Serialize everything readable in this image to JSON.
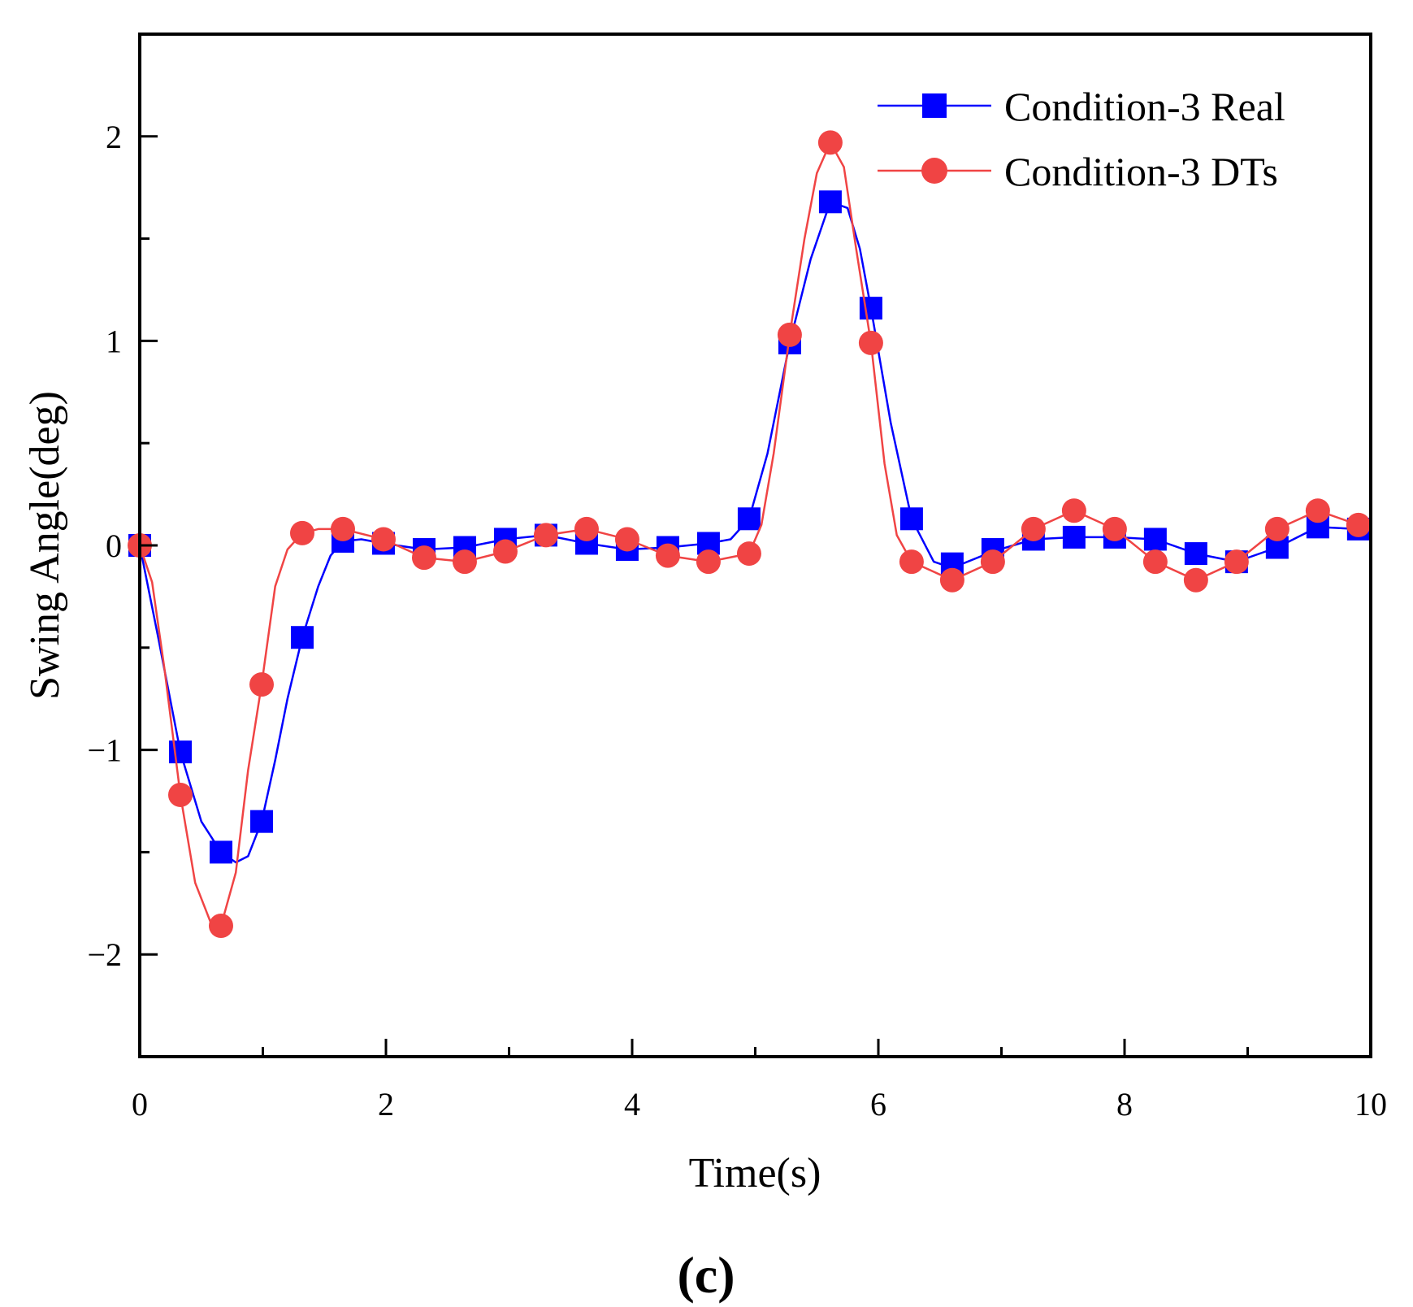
{
  "chart_data": {
    "type": "line",
    "title": "",
    "xlabel": "Time(s)",
    "ylabel": "Swing Angle(deg)",
    "panel_label": "(c)",
    "xlim": [
      0,
      10
    ],
    "ylim": [
      -2.5,
      2.5
    ],
    "x_ticks": [
      0,
      2,
      4,
      6,
      8,
      10
    ],
    "x_tick_labels": [
      "0",
      "2",
      "4",
      "6",
      "8",
      "10"
    ],
    "x_minor_ticks": [
      1,
      3,
      5,
      7,
      9
    ],
    "y_ticks": [
      -2,
      -1,
      0,
      1,
      2
    ],
    "y_tick_labels": [
      "−2",
      "−1",
      "0",
      "1",
      "2"
    ],
    "legend_position": "top-right",
    "series": [
      {
        "name": "Condition-3 Real",
        "color": "#0000ff",
        "marker": "square",
        "x": [
          0.0,
          0.33,
          0.66,
          0.99,
          1.32,
          1.65,
          1.98,
          2.31,
          2.64,
          2.97,
          3.3,
          3.63,
          3.96,
          4.29,
          4.62,
          4.95,
          5.28,
          5.61,
          5.94,
          6.27,
          6.6,
          6.93,
          7.26,
          7.59,
          7.92,
          8.25,
          8.58,
          8.91,
          9.24,
          9.57,
          9.9
        ],
        "values": [
          0.0,
          -1.01,
          -1.5,
          -1.35,
          -0.45,
          0.02,
          0.01,
          -0.02,
          -0.01,
          0.03,
          0.05,
          0.01,
          -0.02,
          -0.01,
          0.01,
          0.13,
          0.99,
          1.68,
          1.16,
          0.13,
          -0.09,
          -0.02,
          0.03,
          0.04,
          0.04,
          0.03,
          -0.04,
          -0.08,
          -0.01,
          0.09,
          0.08
        ],
        "curve_x": [
          0.0,
          0.15,
          0.33,
          0.5,
          0.66,
          0.78,
          0.88,
          0.99,
          1.1,
          1.2,
          1.32,
          1.45,
          1.55,
          1.65,
          1.8,
          1.98,
          2.31,
          2.64,
          2.97,
          3.3,
          3.63,
          3.96,
          4.29,
          4.62,
          4.8,
          4.95,
          5.1,
          5.28,
          5.45,
          5.61,
          5.75,
          5.85,
          5.94,
          6.1,
          6.27,
          6.45,
          6.6,
          6.93,
          7.26,
          7.59,
          7.92,
          8.25,
          8.58,
          8.91,
          9.24,
          9.57,
          9.9
        ],
        "curve_y": [
          0.0,
          -0.45,
          -1.01,
          -1.35,
          -1.5,
          -1.55,
          -1.52,
          -1.35,
          -1.05,
          -0.75,
          -0.45,
          -0.2,
          -0.05,
          0.02,
          0.03,
          0.01,
          -0.02,
          -0.01,
          0.03,
          0.05,
          0.01,
          -0.02,
          -0.01,
          0.01,
          0.03,
          0.13,
          0.45,
          0.99,
          1.4,
          1.68,
          1.65,
          1.45,
          1.16,
          0.6,
          0.13,
          -0.08,
          -0.11,
          -0.03,
          0.03,
          0.04,
          0.04,
          0.03,
          -0.04,
          -0.08,
          -0.01,
          0.09,
          0.08
        ]
      },
      {
        "name": "Condition-3 DTs",
        "color": "#f04444",
        "marker": "circle",
        "x": [
          0.0,
          0.33,
          0.66,
          0.99,
          1.32,
          1.65,
          1.98,
          2.31,
          2.64,
          2.97,
          3.3,
          3.63,
          3.96,
          4.29,
          4.62,
          4.95,
          5.28,
          5.61,
          5.94,
          6.27,
          6.6,
          6.93,
          7.26,
          7.59,
          7.92,
          8.25,
          8.58,
          8.91,
          9.24,
          9.57,
          9.9
        ],
        "values": [
          0.0,
          -1.22,
          -1.86,
          -0.68,
          0.06,
          0.08,
          0.03,
          -0.06,
          -0.08,
          -0.03,
          0.05,
          0.08,
          0.03,
          -0.05,
          -0.08,
          -0.04,
          1.03,
          1.97,
          0.99,
          -0.08,
          -0.17,
          -0.08,
          0.08,
          0.17,
          0.08,
          -0.08,
          -0.17,
          -0.08,
          0.08,
          0.17,
          0.1
        ],
        "curve_x": [
          0.0,
          0.1,
          0.2,
          0.33,
          0.45,
          0.58,
          0.66,
          0.78,
          0.88,
          0.99,
          1.1,
          1.2,
          1.32,
          1.45,
          1.65,
          1.98,
          2.31,
          2.64,
          2.97,
          3.3,
          3.63,
          3.96,
          4.29,
          4.62,
          4.95,
          5.05,
          5.15,
          5.28,
          5.4,
          5.5,
          5.61,
          5.72,
          5.82,
          5.94,
          6.05,
          6.15,
          6.27,
          6.6,
          6.93,
          7.26,
          7.59,
          7.92,
          8.25,
          8.58,
          8.91,
          9.24,
          9.57,
          9.9
        ],
        "curve_y": [
          0.0,
          -0.18,
          -0.6,
          -1.22,
          -1.65,
          -1.85,
          -1.86,
          -1.6,
          -1.1,
          -0.68,
          -0.2,
          -0.02,
          0.06,
          0.08,
          0.08,
          0.03,
          -0.06,
          -0.08,
          -0.03,
          0.05,
          0.08,
          0.03,
          -0.05,
          -0.08,
          -0.04,
          0.1,
          0.45,
          1.03,
          1.5,
          1.82,
          1.97,
          1.85,
          1.45,
          0.99,
          0.4,
          0.05,
          -0.08,
          -0.17,
          -0.08,
          0.08,
          0.17,
          0.08,
          -0.08,
          -0.17,
          -0.08,
          0.08,
          0.17,
          0.1
        ]
      }
    ]
  }
}
